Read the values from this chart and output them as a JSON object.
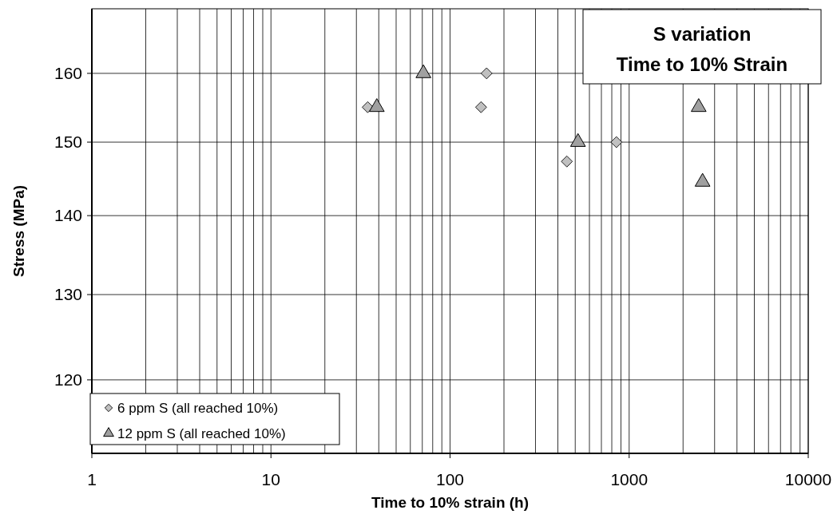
{
  "chart_data": {
    "type": "scatter",
    "title": "S variation\nTime to 10% Strain",
    "xlabel": "Time to 10% strain (h)",
    "ylabel": "Stress (MPa)",
    "log": "xy",
    "xlim": [
      1,
      10000
    ],
    "ylim": [
      112,
      170
    ],
    "xticks": [
      1,
      {
        "value": 2,
        "label": null
      },
      {
        "value": 3,
        "label": null
      },
      {
        "value": 4,
        "label": null
      },
      {
        "value": 5,
        "label": null
      },
      {
        "value": 6,
        "label": null
      },
      {
        "value": 7,
        "label": null
      },
      {
        "value": 8,
        "label": null
      },
      {
        "value": 9,
        "label": null
      },
      10,
      {
        "value": 20,
        "label": null
      },
      {
        "value": 30,
        "label": null
      },
      {
        "value": 40,
        "label": null
      },
      {
        "value": 50,
        "label": null
      },
      {
        "value": 60,
        "label": null
      },
      {
        "value": 70,
        "label": null
      },
      {
        "value": 80,
        "label": null
      },
      {
        "value": 90,
        "label": null
      },
      100,
      {
        "value": 200,
        "label": null
      },
      {
        "value": 300,
        "label": null
      },
      {
        "value": 400,
        "label": null
      },
      {
        "value": 500,
        "label": null
      },
      {
        "value": 600,
        "label": null
      },
      {
        "value": 700,
        "label": null
      },
      {
        "value": 800,
        "label": null
      },
      {
        "value": 900,
        "label": null
      },
      1000,
      {
        "value": 2000,
        "label": null
      },
      {
        "value": 3000,
        "label": null
      },
      {
        "value": 4000,
        "label": null
      },
      {
        "value": 5000,
        "label": null
      },
      {
        "value": 6000,
        "label": null
      },
      {
        "value": 7000,
        "label": null
      },
      {
        "value": 8000,
        "label": null
      },
      {
        "value": 9000,
        "label": null
      },
      10000
    ],
    "yticks": [
      120,
      130,
      140,
      150,
      160
    ],
    "grid": true,
    "legend": "bottom left",
    "series": [
      {
        "name": "6 ppm S (all reached 10%)",
        "color": "#c0c0c0",
        "marker": "diamond",
        "x": [
          34.7,
          149,
          160,
          449,
          849
        ],
        "values": [
          155,
          155,
          160,
          147.3,
          150
        ]
      },
      {
        "name": "12 ppm S (all reached 10%)",
        "color": "#a0a0a0",
        "marker": "triangle",
        "x": [
          39,
          71,
          518,
          2445,
          2570
        ],
        "values": [
          155,
          160,
          150,
          155,
          144.5
        ]
      }
    ]
  }
}
